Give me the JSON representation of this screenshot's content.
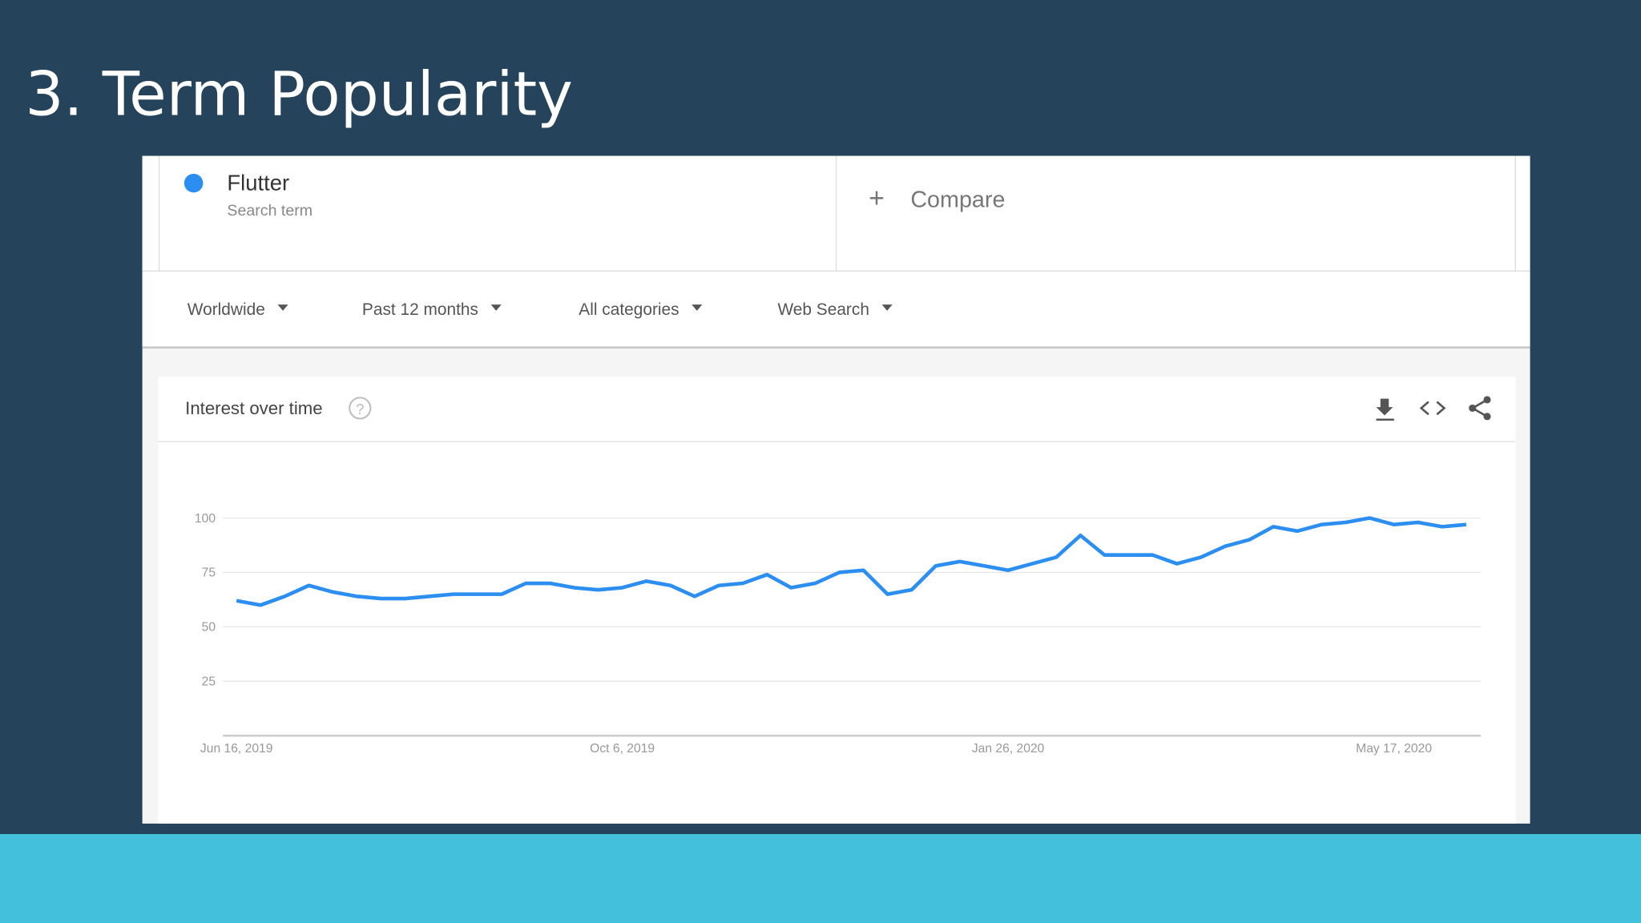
{
  "title": "3. Term Popularity",
  "search_term_label": "Search term",
  "compare": "Compare",
  "filters": [
    "Worldwide",
    "Past 12 months",
    "All categories",
    "Web Search"
  ],
  "chart_data": {
    "type": "line",
    "title": "Interest over time",
    "categories": [
      "Jun 16, 2019",
      null,
      null,
      null,
      null,
      null,
      null,
      null,
      null,
      null,
      null,
      null,
      null,
      null,
      null,
      null,
      "Oct 6, 2019",
      null,
      null,
      null,
      null,
      null,
      null,
      null,
      null,
      null,
      null,
      null,
      null,
      null,
      null,
      null,
      "Jan 26, 2020",
      null,
      null,
      null,
      null,
      null,
      null,
      null,
      null,
      null,
      null,
      null,
      null,
      null,
      null,
      null,
      "May 17, 2020",
      null,
      null,
      null
    ],
    "series": [
      {
        "name": "Flutter",
        "color": "#2b8ef0",
        "values": [
          62,
          60,
          64,
          69,
          66,
          64,
          63,
          63,
          64,
          65,
          65,
          65,
          70,
          70,
          68,
          67,
          68,
          71,
          69,
          64,
          69,
          70,
          74,
          68,
          70,
          75,
          76,
          65,
          67,
          78,
          80,
          78,
          76,
          79,
          82,
          92,
          83,
          83,
          83,
          79,
          82,
          87,
          90,
          96,
          94,
          97,
          98,
          100,
          97,
          98,
          96,
          97
        ]
      }
    ],
    "ylim": [
      0,
      100
    ],
    "yticks": [
      25,
      50,
      75,
      100
    ],
    "grid": true
  }
}
